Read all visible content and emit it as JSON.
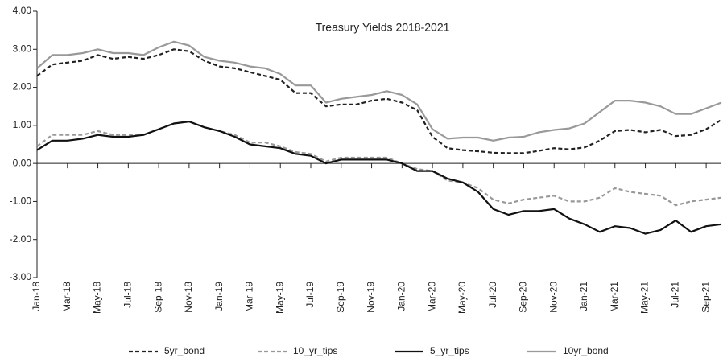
{
  "chart_data": {
    "type": "line",
    "title": "Treasury Yields 2018-2021",
    "x": [
      "2018-01",
      "2018-02",
      "2018-03",
      "2018-04",
      "2018-05",
      "2018-06",
      "2018-07",
      "2018-08",
      "2018-09",
      "2018-10",
      "2018-11",
      "2018-12",
      "2019-01",
      "2019-02",
      "2019-03",
      "2019-04",
      "2019-05",
      "2019-06",
      "2019-07",
      "2019-08",
      "2019-09",
      "2019-10",
      "2019-11",
      "2019-12",
      "2020-01",
      "2020-02",
      "2020-03",
      "2020-04",
      "2020-05",
      "2020-06",
      "2020-07",
      "2020-08",
      "2020-09",
      "2020-10",
      "2020-11",
      "2020-12",
      "2021-01",
      "2021-02",
      "2021-03",
      "2021-04",
      "2021-05",
      "2021-06",
      "2021-07",
      "2021-08",
      "2021-09",
      "2021-10"
    ],
    "series": [
      {
        "name": "5yr_bond",
        "color": "#222222",
        "dashed": true,
        "values": [
          2.3,
          2.6,
          2.65,
          2.7,
          2.85,
          2.75,
          2.8,
          2.75,
          2.85,
          3.0,
          2.95,
          2.7,
          2.55,
          2.5,
          2.4,
          2.3,
          2.2,
          1.85,
          1.85,
          1.5,
          1.55,
          1.55,
          1.65,
          1.7,
          1.6,
          1.4,
          0.7,
          0.4,
          0.35,
          0.32,
          0.28,
          0.27,
          0.27,
          0.33,
          0.4,
          0.37,
          0.42,
          0.6,
          0.85,
          0.88,
          0.82,
          0.88,
          0.72,
          0.75,
          0.9,
          1.15
        ]
      },
      {
        "name": "10_yr_tips",
        "color": "#999999",
        "dashed": true,
        "values": [
          0.45,
          0.75,
          0.75,
          0.75,
          0.85,
          0.75,
          0.75,
          0.75,
          0.9,
          1.05,
          1.1,
          0.95,
          0.85,
          0.75,
          0.55,
          0.55,
          0.45,
          0.3,
          0.25,
          0.05,
          0.15,
          0.15,
          0.15,
          0.15,
          0.0,
          -0.15,
          -0.2,
          -0.45,
          -0.5,
          -0.65,
          -0.95,
          -1.05,
          -0.95,
          -0.9,
          -0.85,
          -1.0,
          -1.0,
          -0.9,
          -0.65,
          -0.75,
          -0.8,
          -0.85,
          -1.1,
          -1.0,
          -0.95,
          -0.9
        ]
      },
      {
        "name": "5_yr_tips",
        "color": "#111111",
        "dashed": false,
        "values": [
          0.35,
          0.6,
          0.6,
          0.65,
          0.75,
          0.7,
          0.7,
          0.75,
          0.9,
          1.05,
          1.1,
          0.95,
          0.85,
          0.7,
          0.5,
          0.45,
          0.4,
          0.25,
          0.2,
          0.0,
          0.1,
          0.1,
          0.1,
          0.1,
          0.0,
          -0.2,
          -0.2,
          -0.4,
          -0.5,
          -0.75,
          -1.2,
          -1.35,
          -1.25,
          -1.25,
          -1.2,
          -1.45,
          -1.6,
          -1.8,
          -1.65,
          -1.7,
          -1.85,
          -1.75,
          -1.5,
          -1.8,
          -1.65,
          -1.6
        ]
      },
      {
        "name": "10yr_bond",
        "color": "#999999",
        "dashed": false,
        "values": [
          2.5,
          2.85,
          2.85,
          2.9,
          3.0,
          2.9,
          2.9,
          2.85,
          3.05,
          3.2,
          3.1,
          2.8,
          2.7,
          2.65,
          2.55,
          2.5,
          2.35,
          2.05,
          2.05,
          1.6,
          1.7,
          1.75,
          1.8,
          1.9,
          1.8,
          1.55,
          0.9,
          0.65,
          0.68,
          0.68,
          0.6,
          0.68,
          0.7,
          0.82,
          0.88,
          0.92,
          1.05,
          1.35,
          1.65,
          1.65,
          1.6,
          1.5,
          1.3,
          1.3,
          1.45,
          1.6
        ]
      }
    ],
    "xlim": [
      "2018-01",
      "2021-10"
    ],
    "xticks": [
      {
        "value": "2018-01",
        "label": "Jan-18"
      },
      {
        "value": "2018-03",
        "label": "Mar-18"
      },
      {
        "value": "2018-05",
        "label": "May-18"
      },
      {
        "value": "2018-07",
        "label": "Jul-18"
      },
      {
        "value": "2018-09",
        "label": "Sep-18"
      },
      {
        "value": "2018-11",
        "label": "Nov-18"
      },
      {
        "value": "2019-01",
        "label": "Jan-19"
      },
      {
        "value": "2019-03",
        "label": "Mar-19"
      },
      {
        "value": "2019-05",
        "label": "May-19"
      },
      {
        "value": "2019-07",
        "label": "Jul-19"
      },
      {
        "value": "2019-09",
        "label": "Sep-19"
      },
      {
        "value": "2019-11",
        "label": "Nov-19"
      },
      {
        "value": "2020-01",
        "label": "Jan-20"
      },
      {
        "value": "2020-03",
        "label": "Mar-20"
      },
      {
        "value": "2020-05",
        "label": "May-20"
      },
      {
        "value": "2020-07",
        "label": "Jul-20"
      },
      {
        "value": "2020-09",
        "label": "Sep-20"
      },
      {
        "value": "2020-11",
        "label": "Nov-20"
      },
      {
        "value": "2021-01",
        "label": "Jan-21"
      },
      {
        "value": "2021-03",
        "label": "Mar-21"
      },
      {
        "value": "2021-05",
        "label": "May-21"
      },
      {
        "value": "2021-07",
        "label": "Jul-21"
      },
      {
        "value": "2021-09",
        "label": "Sep-21"
      }
    ],
    "ylim": [
      -3,
      4
    ],
    "yticks": [
      {
        "value": 4,
        "label": "4.00"
      },
      {
        "value": 3,
        "label": "3.00"
      },
      {
        "value": 2,
        "label": "2.00"
      },
      {
        "value": 1,
        "label": "1.00"
      },
      {
        "value": 0,
        "label": "0.00"
      },
      {
        "value": -1,
        "label": "-1.00"
      },
      {
        "value": -2,
        "label": "-2.00"
      },
      {
        "value": -3,
        "label": "-3.00"
      }
    ],
    "grid": false,
    "legend": "bottom"
  }
}
